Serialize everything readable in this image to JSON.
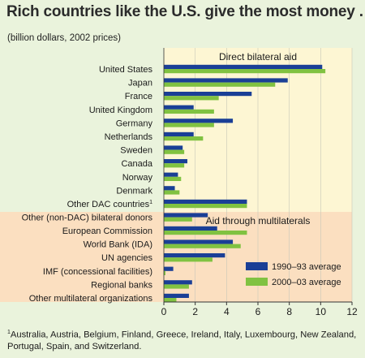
{
  "title": "Rich countries like the U.S. give the most money . . .",
  "subtitle": "(billion dollars, 2002 prices)",
  "footnote": {
    "marker": "1",
    "text": "Australia, Austria, Belgium, Finland, Greece, Ireland, Italy, Luxembourg, New Zealand, Portugal, Spain, and Switzerland."
  },
  "colors": {
    "series_1990": "#1a3f96",
    "series_2000": "#80c241",
    "panel_bilateral": "#fdf6d3",
    "panel_multilateral": "#fbdfc0",
    "page_background": "#eaf3dc"
  },
  "chart_data": {
    "type": "bar",
    "orientation": "horizontal",
    "xlim": [
      0,
      12
    ],
    "x_ticks": [
      "0",
      "2",
      "4",
      "6",
      "8",
      "10",
      "12"
    ],
    "legend": {
      "placement": "lower-right",
      "entries": [
        "1990–93 average",
        "2000–03 average"
      ]
    },
    "series": [
      {
        "name": "1990–93 average"
      },
      {
        "name": "2000–03 average"
      }
    ],
    "groups": [
      {
        "label": "Direct bilateral aid",
        "categories": [
          {
            "label": "United States",
            "values": [
              10.1,
              10.3
            ]
          },
          {
            "label": "Japan",
            "values": [
              7.9,
              7.1
            ]
          },
          {
            "label": "France",
            "values": [
              5.6,
              3.5
            ]
          },
          {
            "label": "United Kingdom",
            "values": [
              1.9,
              3.2
            ]
          },
          {
            "label": "Germany",
            "values": [
              4.4,
              3.2
            ]
          },
          {
            "label": "Netherlands",
            "values": [
              1.9,
              2.5
            ]
          },
          {
            "label": "Sweden",
            "values": [
              1.2,
              1.3
            ]
          },
          {
            "label": "Canada",
            "values": [
              1.5,
              1.3
            ]
          },
          {
            "label": "Norway",
            "values": [
              0.9,
              1.1
            ]
          },
          {
            "label": "Denmark",
            "values": [
              0.7,
              1.0
            ]
          },
          {
            "label": "Other DAC countries",
            "footnote": "1",
            "values": [
              5.3,
              5.3
            ]
          },
          {
            "label": "Other (non-DAC) bilateral donors",
            "values": [
              2.8,
              1.8
            ]
          }
        ]
      },
      {
        "label": "Aid through multilaterals",
        "categories": [
          {
            "label": "European Commission",
            "values": [
              3.4,
              5.3
            ]
          },
          {
            "label": "World Bank (IDA)",
            "values": [
              4.4,
              4.9
            ]
          },
          {
            "label": "UN agencies",
            "values": [
              3.9,
              3.1
            ]
          },
          {
            "label": "IMF (concessional facilities)",
            "values": [
              0.6,
              0.1
            ]
          },
          {
            "label": "Regional banks",
            "values": [
              1.8,
              1.6
            ]
          },
          {
            "label": "Other multilateral organizations",
            "values": [
              1.6,
              0.8
            ]
          }
        ]
      }
    ]
  }
}
